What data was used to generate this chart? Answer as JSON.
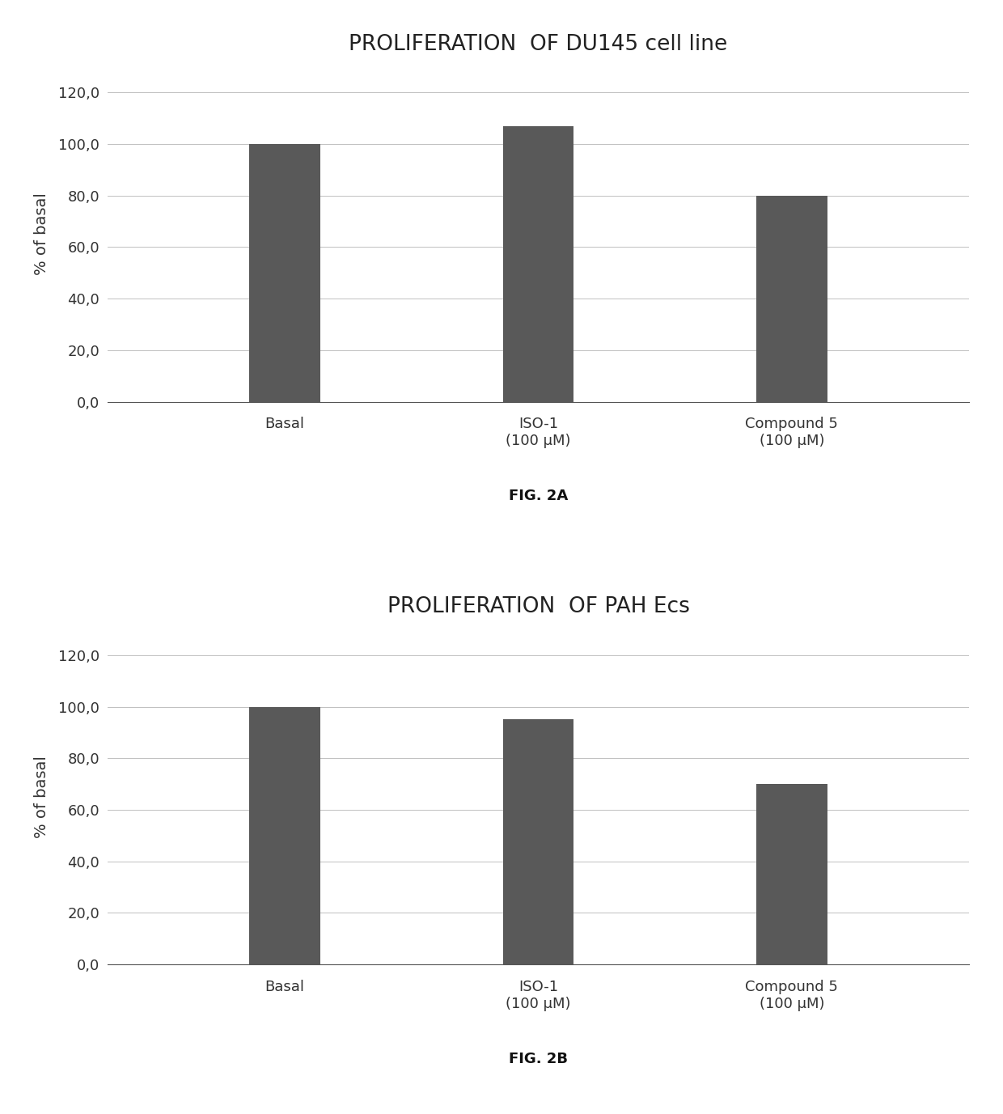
{
  "chart1": {
    "title": "PROLIFERATION  OF DU145 cell line",
    "categories": [
      "Basal",
      "ISO-1\n(100 μM)",
      "Compound 5\n(100 μM)"
    ],
    "values": [
      100.0,
      107.0,
      80.0
    ],
    "ylabel": "% of basal",
    "ylim": [
      0,
      130
    ],
    "yticks": [
      0.0,
      20.0,
      40.0,
      60.0,
      80.0,
      100.0,
      120.0
    ],
    "fig_label": "FIG. 2A"
  },
  "chart2": {
    "title": "PROLIFERATION  OF PAH Ecs",
    "categories": [
      "Basal",
      "ISO-1\n(100 μM)",
      "Compound 5\n(100 μM)"
    ],
    "values": [
      100.0,
      95.0,
      70.0
    ],
    "ylabel": "% of basal",
    "ylim": [
      0,
      130
    ],
    "yticks": [
      0.0,
      20.0,
      40.0,
      60.0,
      80.0,
      100.0,
      120.0
    ],
    "fig_label": "FIG. 2B"
  },
  "bar_color": "#595959",
  "background_color": "#ffffff",
  "grid_color": "#c0c0c0",
  "title_fontsize": 19,
  "label_fontsize": 14,
  "tick_fontsize": 13,
  "fig_label_fontsize": 13,
  "bar_width": 0.28
}
